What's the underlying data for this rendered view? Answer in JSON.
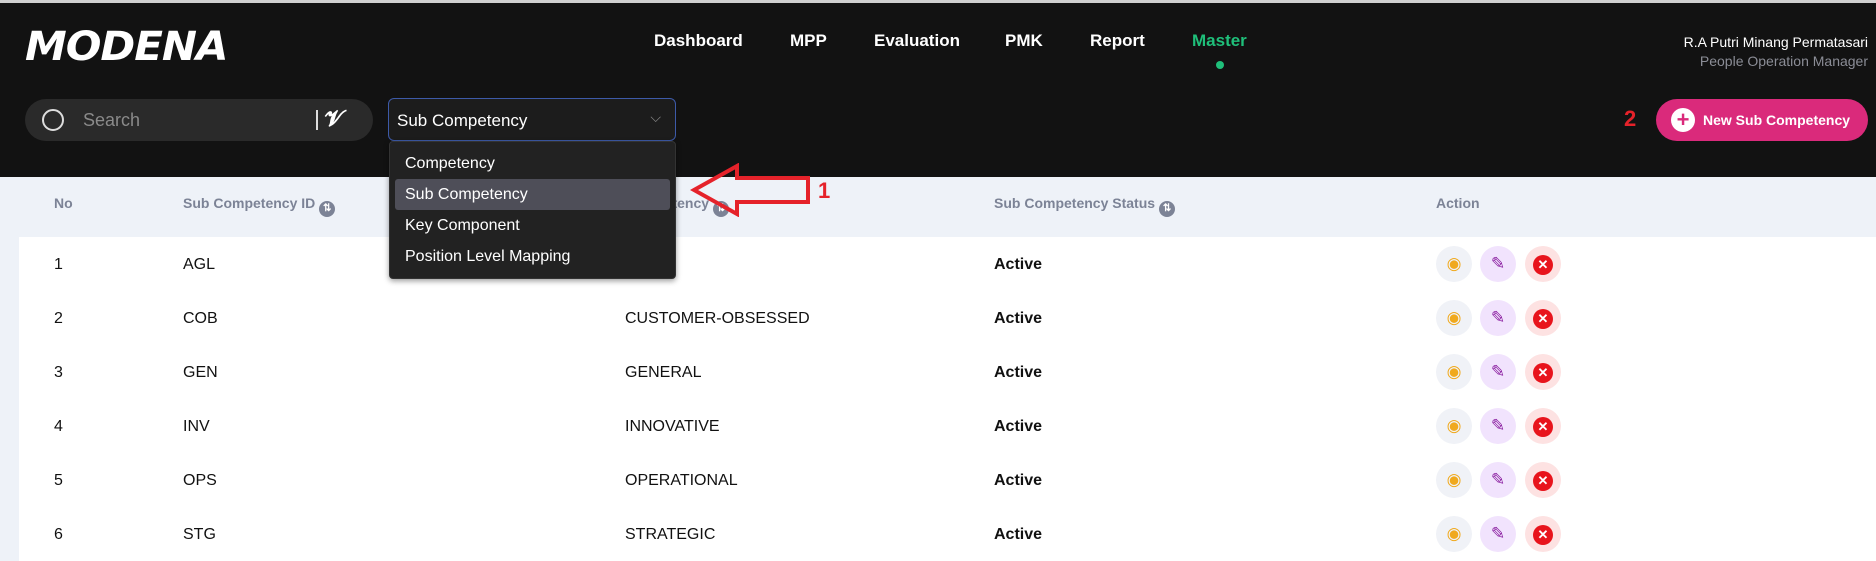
{
  "brand": {
    "logo": "MODENA"
  },
  "nav": [
    {
      "label": "Dashboard"
    },
    {
      "label": "MPP"
    },
    {
      "label": "Evaluation"
    },
    {
      "label": "PMK"
    },
    {
      "label": "Report"
    },
    {
      "label": "Master",
      "active": true
    }
  ],
  "user": {
    "name": "R.A Putri Minang Permatasari",
    "role": "People Operation Manager"
  },
  "search": {
    "placeholder": "Search"
  },
  "select": {
    "value": "Sub Competency",
    "options": [
      "Competency",
      "Sub Competency",
      "Key Component",
      "Position Level Mapping"
    ]
  },
  "new_button": {
    "label": "New Sub Competency"
  },
  "annotations": {
    "arrow_label": "1",
    "button_label": "2"
  },
  "table": {
    "headers": {
      "no": "No",
      "id": "Sub Competency ID",
      "competency": "Competency",
      "status": "Sub Competency Status",
      "action": "Action"
    },
    "rows": [
      {
        "no": "1",
        "id": "AGL",
        "competency": "",
        "status": "Active"
      },
      {
        "no": "2",
        "id": "COB",
        "competency": "CUSTOMER-OBSESSED",
        "status": "Active"
      },
      {
        "no": "3",
        "id": "GEN",
        "competency": "GENERAL",
        "status": "Active"
      },
      {
        "no": "4",
        "id": "INV",
        "competency": "INNOVATIVE",
        "status": "Active"
      },
      {
        "no": "5",
        "id": "OPS",
        "competency": "OPERATIONAL",
        "status": "Active"
      },
      {
        "no": "6",
        "id": "STG",
        "competency": "STRATEGIC",
        "status": "Active"
      }
    ]
  },
  "colors": {
    "accent": "#da2a7b",
    "active_nav": "#1fbf7a",
    "header_bg": "#121212",
    "annotation": "#e5222a"
  }
}
